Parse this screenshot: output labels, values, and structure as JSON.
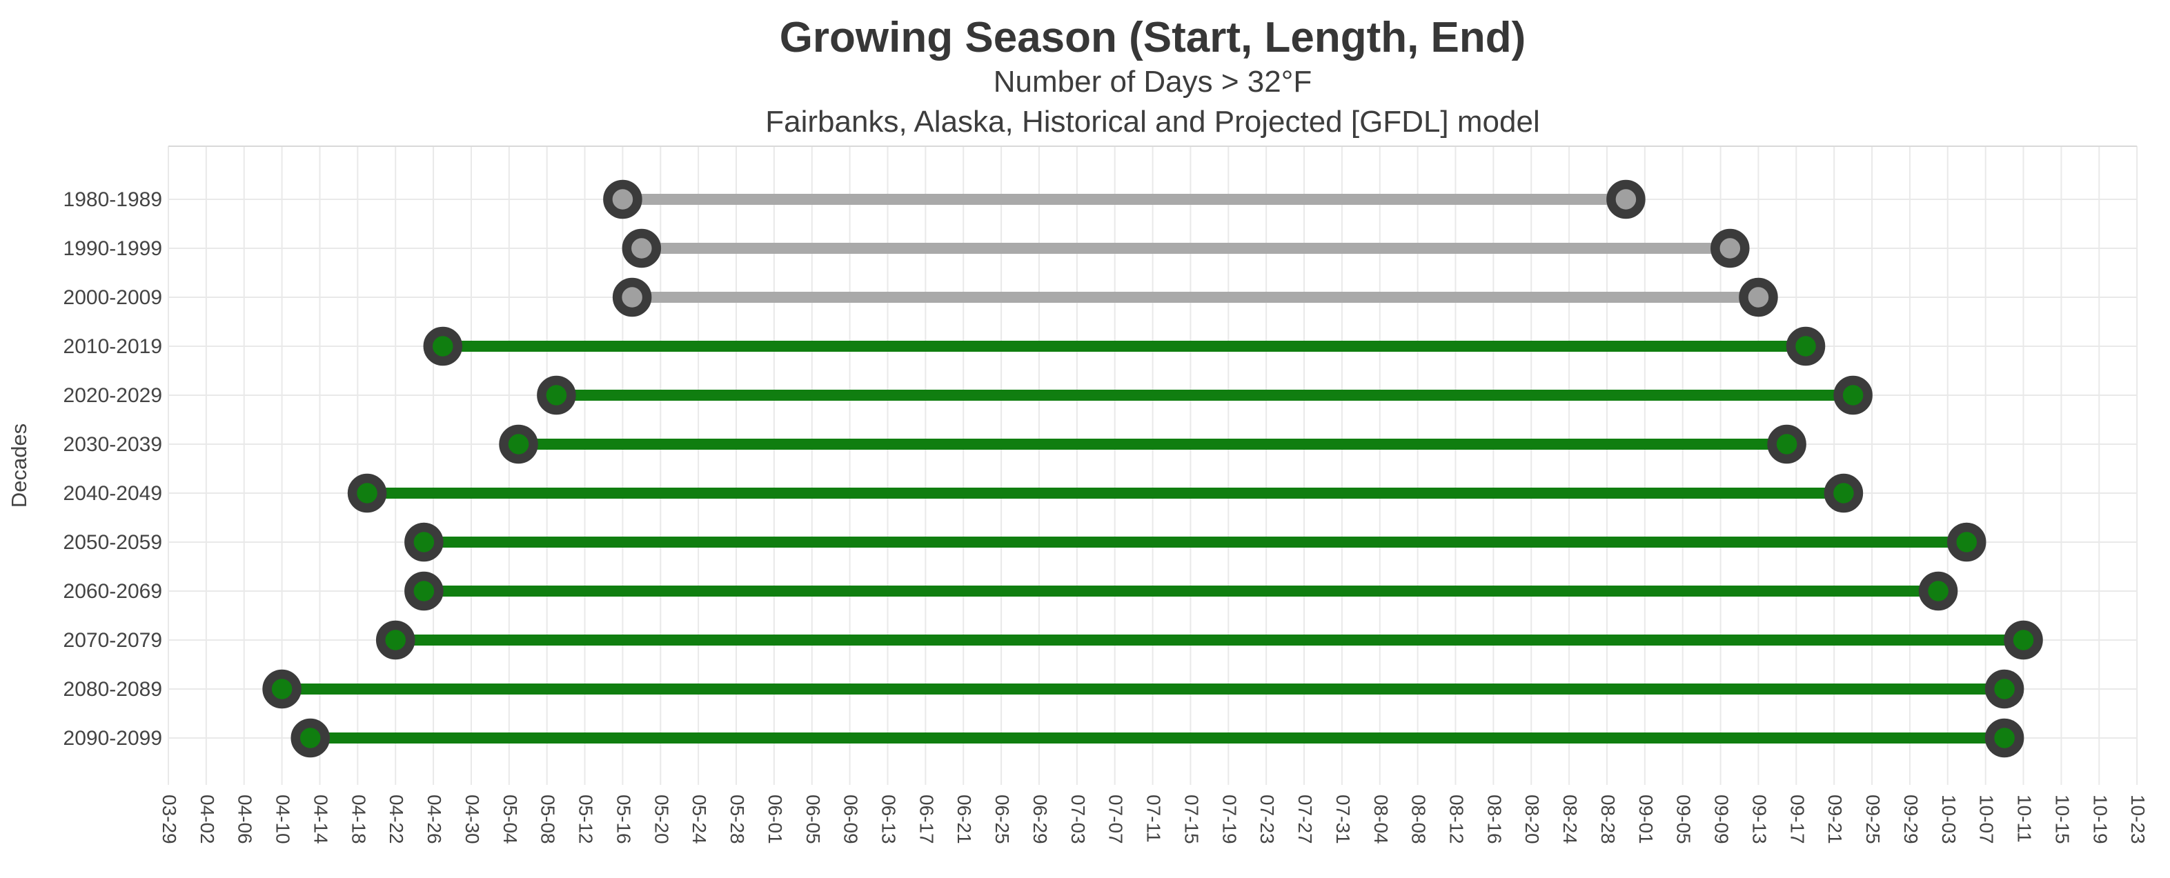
{
  "title": "Growing Season (Start, Length, End)",
  "subtitle": "Number of Days > 32°F",
  "subtitle2": "Fairbanks, Alaska, Historical and Projected [GFDL] model",
  "chart_data": {
    "type": "dumbbell-timeline",
    "title": "Growing Season (Start, Length, End)",
    "ylabel": "Decades",
    "x_tick_labels": [
      "03-29",
      "04-02",
      "04-06",
      "04-10",
      "04-14",
      "04-18",
      "04-22",
      "04-26",
      "04-30",
      "05-04",
      "05-08",
      "05-12",
      "05-16",
      "05-20",
      "05-24",
      "05-28",
      "06-01",
      "06-05",
      "06-09",
      "06-13",
      "06-17",
      "06-21",
      "06-25",
      "06-29",
      "07-03",
      "07-07",
      "07-11",
      "07-15",
      "07-19",
      "07-23",
      "07-27",
      "07-31",
      "08-04",
      "08-08",
      "08-12",
      "08-16",
      "08-20",
      "08-24",
      "08-28",
      "09-01",
      "09-05",
      "09-09",
      "09-13",
      "09-17",
      "09-21",
      "09-25",
      "09-29",
      "10-03",
      "10-07",
      "10-11",
      "10-15",
      "10-19",
      "10-23"
    ],
    "x_range": [
      "03-29",
      "10-23"
    ],
    "x_tick_step_days": 4,
    "grid": true,
    "legend_position": "none",
    "categories": [
      "1980-1989",
      "1990-1999",
      "2000-2009",
      "2010-2019",
      "2020-2029",
      "2030-2039",
      "2040-2049",
      "2050-2059",
      "2060-2069",
      "2070-2079",
      "2080-2089",
      "2090-2099"
    ],
    "series": [
      {
        "decade": "1980-1989",
        "era": "historical",
        "start": "05-16",
        "end": "08-30",
        "length_days": 106
      },
      {
        "decade": "1990-1999",
        "era": "historical",
        "start": "05-18",
        "end": "09-10",
        "length_days": 115
      },
      {
        "decade": "2000-2009",
        "era": "historical",
        "start": "05-17",
        "end": "09-13",
        "length_days": 119
      },
      {
        "decade": "2010-2019",
        "era": "projected",
        "start": "04-27",
        "end": "09-18",
        "length_days": 144
      },
      {
        "decade": "2020-2029",
        "era": "projected",
        "start": "05-09",
        "end": "09-23",
        "length_days": 137
      },
      {
        "decade": "2030-2039",
        "era": "projected",
        "start": "05-05",
        "end": "09-16",
        "length_days": 134
      },
      {
        "decade": "2040-2049",
        "era": "projected",
        "start": "04-19",
        "end": "09-22",
        "length_days": 156
      },
      {
        "decade": "2050-2059",
        "era": "projected",
        "start": "04-25",
        "end": "10-05",
        "length_days": 163
      },
      {
        "decade": "2060-2069",
        "era": "projected",
        "start": "04-25",
        "end": "10-02",
        "length_days": 160
      },
      {
        "decade": "2070-2079",
        "era": "projected",
        "start": "04-22",
        "end": "10-11",
        "length_days": 172
      },
      {
        "decade": "2080-2089",
        "era": "projected",
        "start": "04-10",
        "end": "10-09",
        "length_days": 182
      },
      {
        "decade": "2090-2099",
        "era": "projected",
        "start": "04-13",
        "end": "10-09",
        "length_days": 179
      }
    ],
    "colors": {
      "historical_line": "#a9a9a9",
      "historical_marker_fill": "#a0a0a0",
      "projected_line": "#107e10",
      "projected_marker_fill": "#107e10",
      "marker_ring": "#3b3b3b",
      "gridline": "#e9e9e9",
      "plot_border": "#d9d9d9",
      "tick_text": "#444444",
      "title_text": "#373737"
    }
  }
}
